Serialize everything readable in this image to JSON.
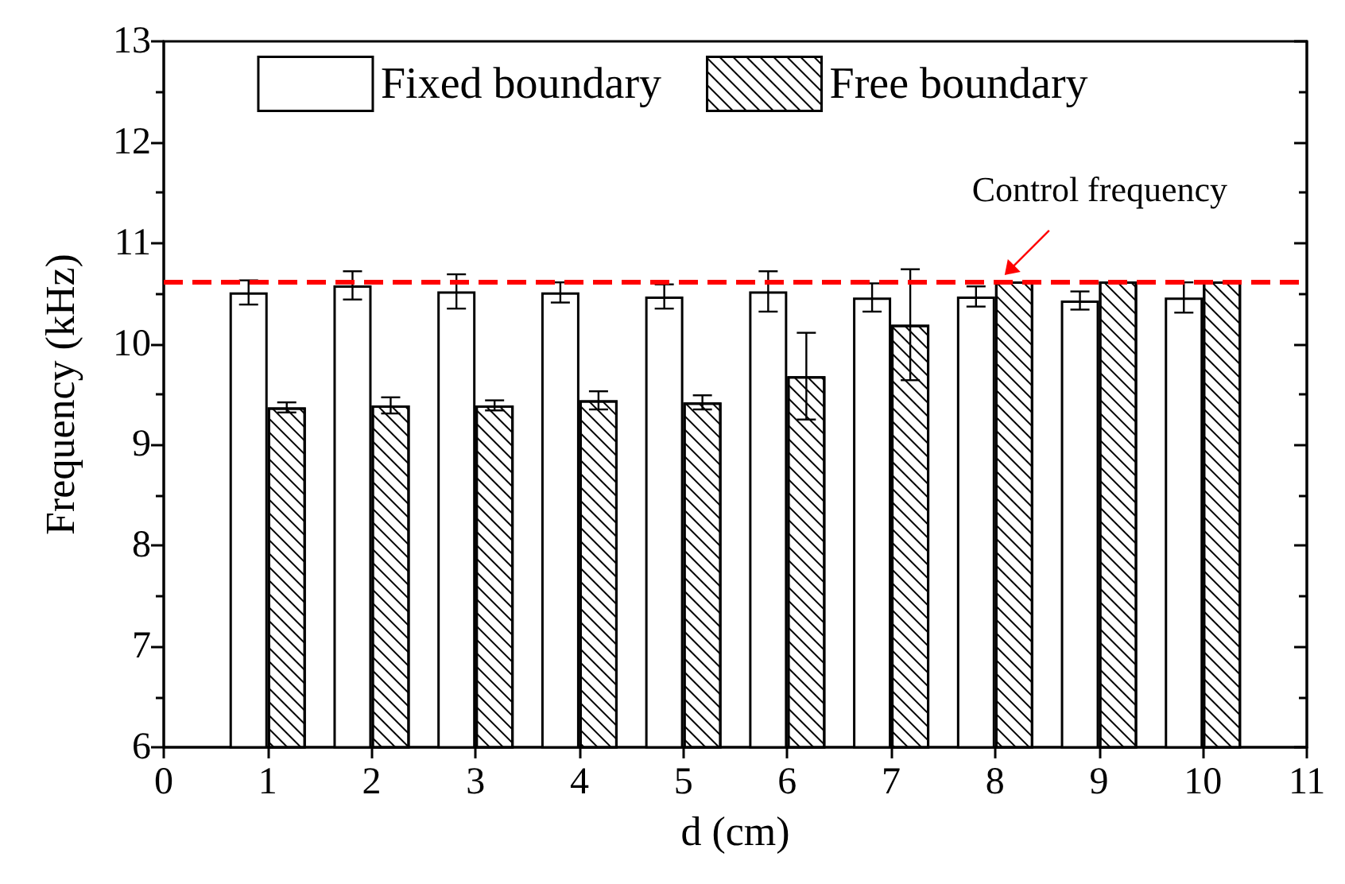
{
  "chart_data": {
    "type": "bar",
    "xlabel": "d (cm)",
    "ylabel": "Frequency (kHz)",
    "x": [
      1,
      2,
      3,
      4,
      5,
      6,
      7,
      8,
      9,
      10
    ],
    "series": [
      {
        "name": "Fixed boundary",
        "color": "#ffffff",
        "values": [
          10.51,
          10.58,
          10.52,
          10.51,
          10.47,
          10.52,
          10.46,
          10.47,
          10.43,
          10.46
        ],
        "errors": [
          0.12,
          0.14,
          0.17,
          0.1,
          0.12,
          0.2,
          0.14,
          0.1,
          0.09,
          0.15
        ]
      },
      {
        "name": "Free boundary",
        "color": "#ffffff",
        "values": [
          9.37,
          9.39,
          9.39,
          9.44,
          9.42,
          9.68,
          10.19,
          10.62,
          10.62,
          10.62
        ],
        "errors": [
          0.05,
          0.08,
          0.05,
          0.09,
          0.07,
          0.43,
          0.55,
          null,
          null,
          null
        ]
      }
    ],
    "xlim": [
      0,
      11
    ],
    "xticks": [
      0,
      1,
      2,
      3,
      4,
      5,
      6,
      7,
      8,
      9,
      10,
      11
    ],
    "ylim": [
      6,
      13
    ],
    "yticks": [
      6,
      7,
      8,
      9,
      10,
      11,
      12,
      13
    ],
    "ref_lines": [
      {
        "axis": "y",
        "value": 10.62,
        "label": "Control frequency",
        "color": "#ff0000",
        "line_style": "dashed"
      }
    ],
    "legend": "top",
    "grid": false
  }
}
